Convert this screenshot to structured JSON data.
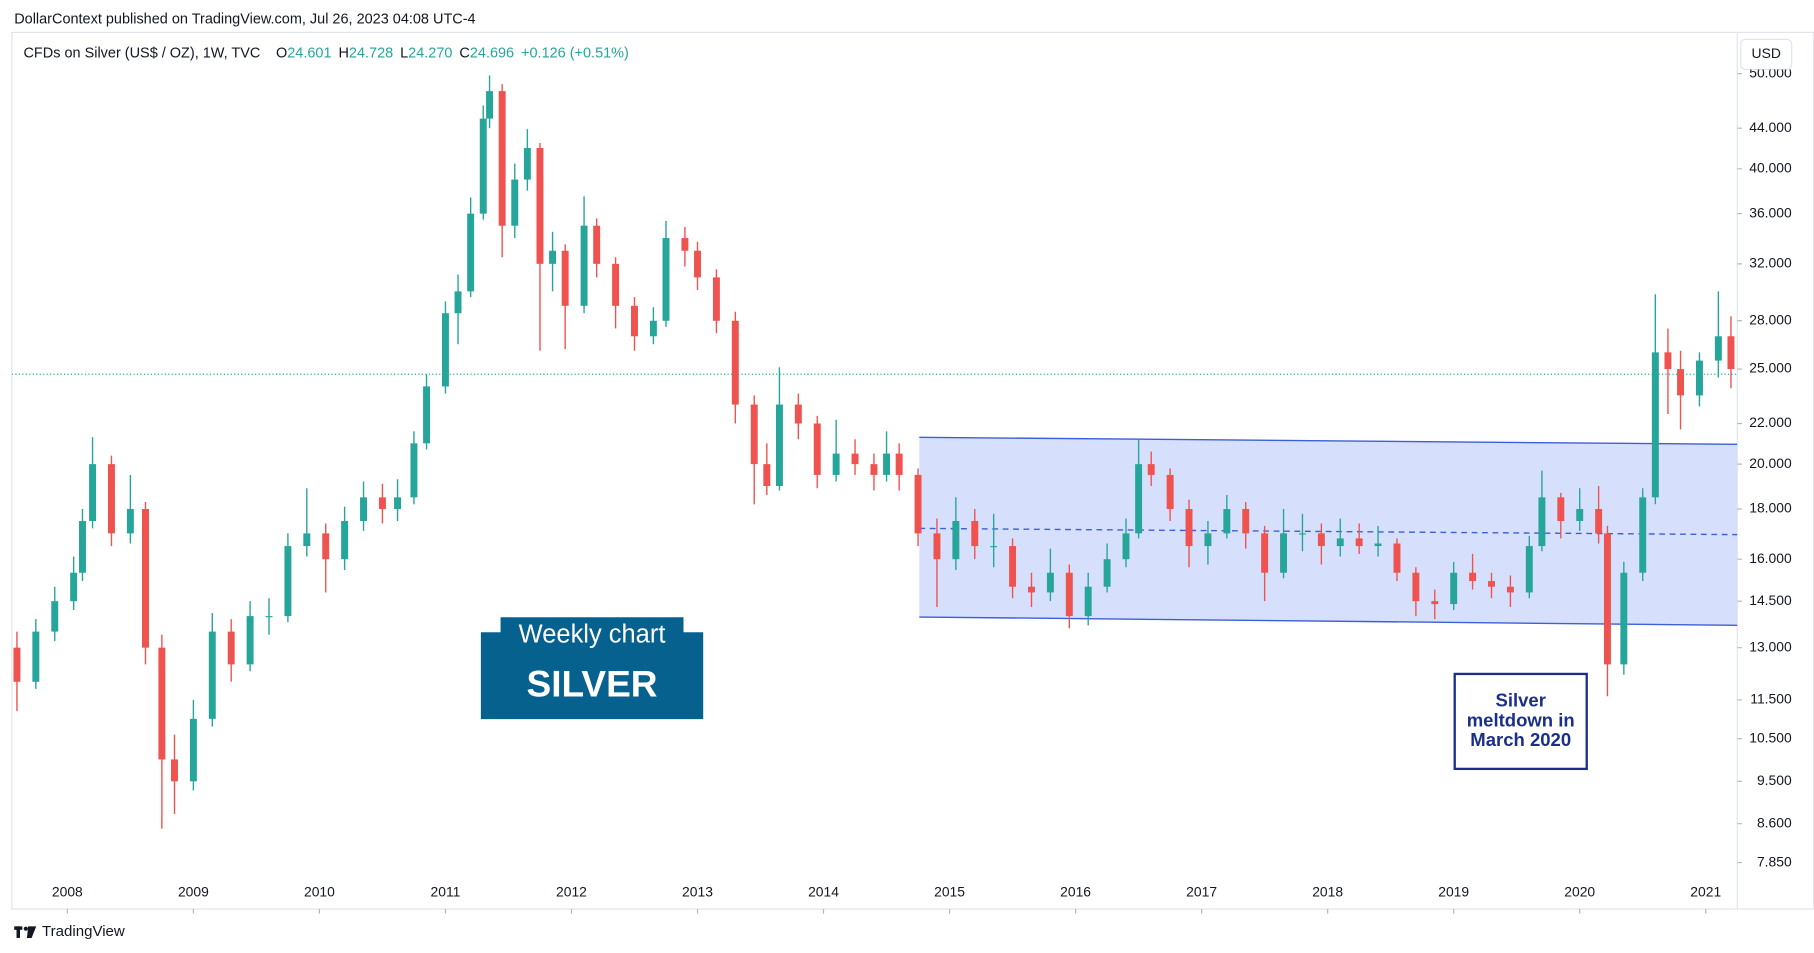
{
  "chart_data": {
    "type": "candlestick",
    "published": "DollarContext published on TradingView.com, Jul 26, 2023 04:08 UTC-4",
    "symbol": "CFDs on Silver (US$ / OZ), 1W, TVC",
    "legend_values": [
      {
        "key": "O",
        "value": "24.601"
      },
      {
        "key": "H",
        "value": "24.728"
      },
      {
        "key": "L",
        "value": "24.270"
      },
      {
        "key": "C",
        "value": "24.696"
      }
    ],
    "change": "+0.126 (+0.51%)",
    "currency": "USD",
    "footer": "TradingView",
    "up_color": "#26a69a",
    "down_color": "#ef5350",
    "log_scale": true,
    "last_price": 24.696,
    "xlim": [
      2007.56,
      2021.25
    ],
    "xticks": [
      2008,
      2009,
      2010,
      2011,
      2012,
      2013,
      2014,
      2015,
      2016,
      2017,
      2018,
      2019,
      2020,
      2021
    ],
    "ylim": [
      7.04,
      50.5
    ],
    "yticks": [
      {
        "value": 50,
        "label": "50.000"
      },
      {
        "value": 44,
        "label": "44.000"
      },
      {
        "value": 40,
        "label": "40.000"
      },
      {
        "value": 36,
        "label": "36.000"
      },
      {
        "value": 32,
        "label": "32.000"
      },
      {
        "value": 28,
        "label": "28.000"
      },
      {
        "value": 25,
        "label": "25.000"
      },
      {
        "value": 22,
        "label": "22.000"
      },
      {
        "value": 20,
        "label": "20.000"
      },
      {
        "value": 18,
        "label": "18.000"
      },
      {
        "value": 16,
        "label": "16.000"
      },
      {
        "value": 14.5,
        "label": "14.500"
      },
      {
        "value": 13,
        "label": "13.000"
      },
      {
        "value": 11.5,
        "label": "11.500"
      },
      {
        "value": 10.5,
        "label": "10.500"
      },
      {
        "value": 9.5,
        "label": "9.500"
      },
      {
        "value": 8.6,
        "label": "8.600"
      },
      {
        "value": 7.85,
        "label": "7.850"
      }
    ],
    "x": [
      2007.6,
      2007.75,
      2007.9,
      2008.05,
      2008.12,
      2008.2,
      2008.35,
      2008.5,
      2008.62,
      2008.75,
      2008.85,
      2009.0,
      2009.15,
      2009.3,
      2009.45,
      2009.6,
      2009.75,
      2009.9,
      2010.05,
      2010.2,
      2010.35,
      2010.5,
      2010.62,
      2010.75,
      2010.85,
      2011.0,
      2011.1,
      2011.2,
      2011.3,
      2011.35,
      2011.45,
      2011.55,
      2011.65,
      2011.75,
      2011.85,
      2011.95,
      2012.1,
      2012.2,
      2012.35,
      2012.5,
      2012.65,
      2012.75,
      2012.9,
      2013.0,
      2013.15,
      2013.3,
      2013.45,
      2013.55,
      2013.65,
      2013.8,
      2013.95,
      2014.1,
      2014.25,
      2014.4,
      2014.5,
      2014.6,
      2014.75,
      2014.9,
      2015.05,
      2015.2,
      2015.35,
      2015.5,
      2015.65,
      2015.8,
      2015.95,
      2016.1,
      2016.25,
      2016.4,
      2016.5,
      2016.6,
      2016.75,
      2016.9,
      2017.05,
      2017.2,
      2017.35,
      2017.5,
      2017.65,
      2017.8,
      2017.95,
      2018.1,
      2018.25,
      2018.4,
      2018.55,
      2018.7,
      2018.85,
      2019.0,
      2019.15,
      2019.3,
      2019.45,
      2019.6,
      2019.7,
      2019.85,
      2020.0,
      2020.15,
      2020.22,
      2020.35,
      2020.5,
      2020.6,
      2020.7,
      2020.8,
      2020.95,
      2021.1,
      2021.2
    ],
    "open": [
      13.0,
      12.0,
      13.5,
      14.5,
      15.5,
      17.5,
      20.0,
      17.0,
      18.0,
      13.0,
      10.0,
      9.5,
      11.0,
      13.5,
      12.5,
      14.0,
      14.0,
      16.5,
      17.0,
      16.0,
      17.5,
      18.5,
      18.0,
      18.5,
      21.0,
      24.0,
      28.5,
      30.0,
      36.0,
      45.0,
      48.0,
      35.0,
      39.0,
      42.0,
      32.0,
      33.0,
      29.0,
      35.0,
      32.0,
      29.0,
      27.0,
      28.0,
      34.0,
      33.0,
      31.0,
      28.0,
      23.0,
      20.0,
      19.0,
      23.0,
      22.0,
      19.5,
      20.5,
      20.0,
      19.5,
      20.5,
      19.5,
      17.0,
      16.0,
      17.5,
      16.5,
      16.5,
      15.0,
      14.8,
      15.5,
      14.0,
      15.0,
      16.0,
      17.0,
      20.0,
      19.5,
      18.0,
      16.5,
      17.0,
      18.0,
      17.0,
      15.5,
      17.0,
      17.0,
      16.5,
      16.8,
      16.5,
      16.6,
      15.5,
      14.5,
      14.4,
      15.5,
      15.2,
      15.0,
      14.8,
      16.5,
      18.5,
      17.5,
      18.0,
      17.0,
      12.5,
      15.5,
      18.5,
      26.0,
      25.0,
      23.5,
      25.5,
      27.0
    ],
    "high": [
      13.5,
      13.9,
      15.0,
      16.1,
      18.0,
      21.3,
      20.4,
      19.5,
      18.3,
      13.4,
      10.6,
      11.5,
      14.1,
      13.9,
      14.5,
      14.6,
      17.0,
      18.9,
      17.4,
      18.1,
      19.2,
      19.1,
      19.3,
      21.6,
      24.7,
      29.3,
      31.2,
      37.4,
      46.4,
      49.8,
      48.8,
      40.5,
      43.9,
      42.5,
      34.5,
      33.5,
      37.5,
      35.6,
      32.5,
      29.6,
      28.9,
      35.4,
      34.9,
      33.7,
      31.6,
      28.6,
      23.5,
      21.0,
      25.1,
      23.6,
      22.4,
      22.2,
      21.2,
      20.5,
      21.6,
      21.0,
      19.8,
      17.6,
      18.5,
      18.0,
      17.8,
      16.8,
      15.5,
      16.4,
      15.8,
      15.5,
      16.6,
      17.6,
      21.2,
      20.6,
      19.8,
      18.4,
      17.5,
      18.6,
      18.3,
      17.3,
      18.0,
      17.8,
      17.4,
      17.6,
      17.4,
      17.3,
      16.8,
      15.7,
      14.9,
      15.9,
      16.2,
      15.5,
      15.4,
      16.9,
      19.7,
      18.7,
      18.9,
      19.0,
      17.3,
      15.9,
      18.9,
      29.8,
      27.5,
      26.1,
      26.0,
      30.0,
      28.3
    ],
    "low": [
      11.2,
      11.8,
      13.2,
      14.2,
      15.2,
      17.2,
      16.5,
      16.6,
      12.5,
      8.5,
      8.8,
      9.3,
      10.8,
      12.0,
      12.3,
      13.4,
      13.8,
      16.1,
      14.8,
      15.6,
      17.1,
      17.4,
      17.5,
      18.2,
      20.7,
      23.6,
      26.5,
      29.6,
      35.5,
      44.0,
      32.5,
      34.0,
      38.0,
      26.1,
      30.0,
      26.2,
      28.5,
      31.0,
      27.5,
      26.1,
      26.5,
      27.6,
      31.8,
      30.1,
      27.2,
      22.0,
      18.2,
      18.6,
      18.8,
      21.2,
      18.9,
      19.2,
      19.5,
      18.8,
      19.2,
      18.8,
      16.5,
      14.3,
      15.6,
      16.0,
      15.7,
      14.6,
      14.3,
      14.5,
      13.6,
      13.7,
      14.8,
      15.7,
      16.8,
      19.0,
      17.5,
      15.7,
      15.8,
      16.8,
      16.4,
      14.5,
      15.3,
      16.3,
      15.8,
      16.1,
      16.2,
      16.1,
      15.2,
      14.0,
      13.9,
      14.2,
      14.9,
      14.6,
      14.3,
      14.6,
      16.3,
      16.8,
      17.1,
      16.6,
      11.6,
      12.2,
      15.2,
      18.2,
      22.5,
      21.7,
      22.9,
      24.5,
      23.9
    ],
    "close": [
      12.0,
      13.5,
      14.5,
      15.5,
      17.5,
      20.0,
      17.0,
      18.0,
      13.0,
      10.0,
      9.5,
      11.0,
      13.5,
      12.5,
      14.0,
      14.0,
      16.5,
      17.0,
      16.0,
      17.5,
      18.5,
      18.0,
      18.5,
      21.0,
      24.0,
      28.5,
      30.0,
      36.0,
      45.0,
      48.0,
      35.0,
      39.0,
      42.0,
      32.0,
      33.0,
      29.0,
      35.0,
      32.0,
      29.0,
      27.0,
      28.0,
      34.0,
      33.0,
      31.0,
      28.0,
      23.0,
      20.0,
      19.0,
      23.0,
      22.0,
      19.5,
      20.5,
      20.0,
      19.5,
      20.5,
      19.5,
      17.0,
      16.0,
      17.5,
      16.5,
      16.5,
      15.0,
      14.8,
      15.5,
      14.0,
      15.0,
      16.0,
      17.0,
      20.0,
      19.5,
      18.0,
      16.5,
      17.0,
      18.0,
      17.0,
      15.5,
      17.0,
      17.0,
      16.5,
      16.8,
      16.5,
      16.6,
      15.5,
      14.5,
      14.4,
      15.5,
      15.2,
      15.0,
      14.8,
      16.5,
      18.5,
      17.5,
      18.0,
      17.0,
      12.5,
      15.5,
      18.5,
      26.0,
      25.0,
      23.5,
      25.5,
      27.0,
      25.0
    ],
    "channel": {
      "x": [
        2014.76,
        2021.25
      ],
      "upper": [
        21.3,
        20.95
      ],
      "lower": [
        13.97,
        13.7
      ],
      "middle": [
        17.2,
        16.95
      ],
      "color": "#3d5fd9",
      "fill": "#cfdafc"
    },
    "annotations": [
      {
        "title": "Weekly chart",
        "text": "SILVER",
        "color": "#07618f"
      },
      {
        "lines": [
          "Silver",
          "meltdown in",
          "March 2020"
        ],
        "color": "#1a2f8a"
      }
    ]
  }
}
